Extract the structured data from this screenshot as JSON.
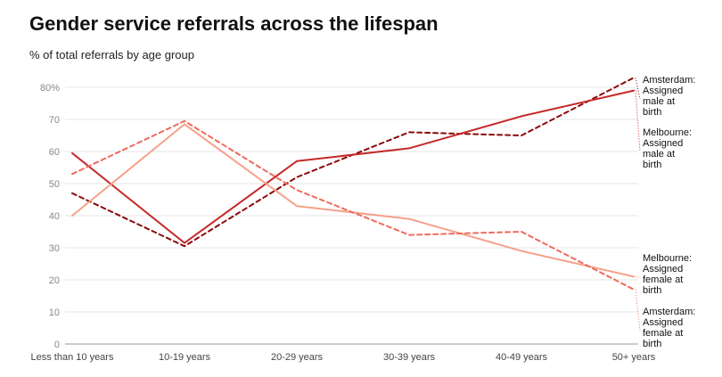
{
  "chart_data": {
    "type": "line",
    "title": "Gender service referrals across the lifespan",
    "subtitle": "% of total referrals by age group",
    "categories": [
      "Less than 10 years",
      "10-19 years",
      "20-29 years",
      "30-39 years",
      "40-49 years",
      "50+ years"
    ],
    "ylim": [
      0,
      80
    ],
    "yticks": [
      0,
      10,
      20,
      30,
      40,
      50,
      60,
      70,
      80
    ],
    "ytick_labels": [
      "0",
      "10",
      "20",
      "30",
      "40",
      "50",
      "60",
      "70",
      "80%"
    ],
    "grid": true,
    "series": [
      {
        "name": "Amsterdam: Assigned male at birth",
        "label_lines": [
          "Amsterdam:",
          "Assigned",
          "male at",
          "birth"
        ],
        "color": "#8b0a0a",
        "dash": true,
        "values": [
          47,
          30.5,
          52,
          66,
          65,
          83
        ]
      },
      {
        "name": "Melbourne: Assigned male at birth",
        "label_lines": [
          "Melbourne:",
          "Assigned",
          "male at",
          "birth"
        ],
        "color": "#c62828",
        "dash": false,
        "values": [
          59.5,
          31.5,
          57,
          61,
          71,
          79
        ]
      },
      {
        "name": "Melbourne: Assigned female at birth",
        "label_lines": [
          "Melbourne:",
          "Assigned",
          "female at",
          "birth"
        ],
        "color": "#f4a18a",
        "dash": false,
        "values": [
          40,
          68.5,
          43,
          39,
          29,
          21
        ]
      },
      {
        "name": "Amsterdam: Assigned female at birth",
        "label_lines": [
          "Amsterdam:",
          "Assigned",
          "female at",
          "birth"
        ],
        "color": "#f06a5a",
        "dash": true,
        "values": [
          53,
          69.5,
          48,
          34,
          35,
          17
        ]
      }
    ]
  }
}
